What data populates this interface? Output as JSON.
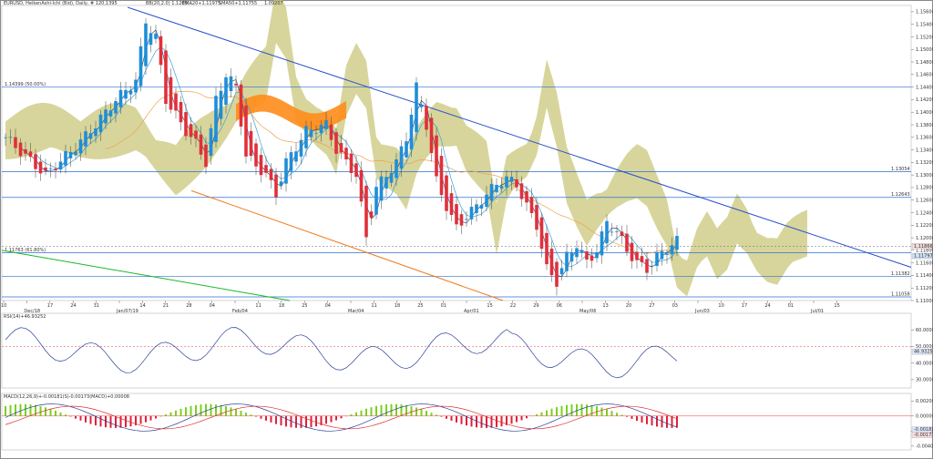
{
  "chart_data": [
    {
      "type": "candlestick",
      "title": "EURUSD, HeikenAshi-Ichi (Bid), Daily, # 120,1395",
      "overlay_labels": {
        "bbands": "BB(20,2.0) 1.1209...",
        "ema20": "EMA20+1.11975",
        "sma": "SMA50+1.11755",
        "value": "1.09207"
      },
      "x_ticks": [
        "10",
        "Dec/18",
        "17",
        "24",
        "31",
        "Jan/07/19",
        "14",
        "21",
        "28",
        "04",
        "Feb/04",
        "11",
        "18",
        "25",
        "04",
        "Mar/04",
        "11",
        "18",
        "25",
        "01",
        "Apr/01",
        "15",
        "22",
        "29",
        "06",
        "May/06",
        "13",
        "20",
        "27",
        "03",
        "Jun/03",
        "10",
        "17",
        "24",
        "01",
        "Jul/01",
        "15"
      ],
      "y_axis": {
        "ticks": [
          "1.15600",
          "1.15400",
          "1.15200",
          "1.15000",
          "1.14800",
          "1.14600",
          "1.14400",
          "1.14200",
          "1.14000",
          "1.13800",
          "1.13600",
          "1.13400",
          "1.13200",
          "1.13000",
          "1.12800",
          "1.12600",
          "1.12400",
          "1.12200",
          "1.12000",
          "1.11800",
          "1.11600",
          "1.11400",
          "1.11200",
          "1.11000"
        ],
        "ylim": [
          1.11,
          1.157
        ]
      },
      "levels": [
        {
          "label": "1.14399 (50.00%)",
          "value": 1.14399
        },
        {
          "label": "1.13054",
          "value": 1.13054
        },
        {
          "label": "1.12643",
          "value": 1.12643
        },
        {
          "label": "1.11763 (61.80%)",
          "value": 1.11763
        },
        {
          "label": "1.11382",
          "value": 1.11382
        },
        {
          "label": "1.11058",
          "value": 1.11058
        }
      ],
      "price_tags": [
        "1.11866",
        "1.11797"
      ]
    },
    {
      "type": "line",
      "title": "RSI(14)+46.93252",
      "y_ticks": [
        "60.00000",
        "50.00000",
        "40.00000",
        "30.00000"
      ],
      "ylim": [
        25,
        70
      ],
      "level": 50,
      "last_value_tag": "46.93252"
    },
    {
      "type": "histogram+line",
      "title": "MACD(12,26,9)+-0.00181(S)-0.00173(MACD)+0.00008",
      "y_ticks": [
        "0.00200",
        "0.00000",
        "-0.00200",
        "-0.00400"
      ],
      "ylim": [
        -0.0045,
        0.003
      ],
      "last_value_tags": [
        "-0.00181",
        "-0.00173"
      ]
    }
  ]
}
